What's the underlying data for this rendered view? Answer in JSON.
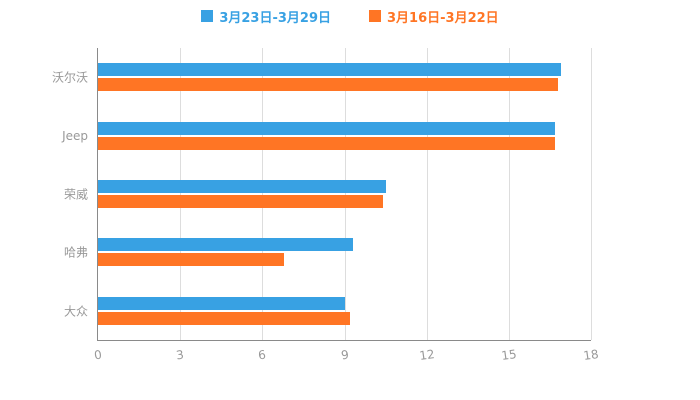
{
  "chart_data": {
    "type": "bar",
    "orientation": "horizontal",
    "title": "",
    "xlabel": "",
    "ylabel": "",
    "categories": [
      "沃尔沃",
      "Jeep",
      "荣威",
      "哈弗",
      "大众"
    ],
    "series": [
      {
        "name": "3月23日-3月29日",
        "color": "#38A1E3",
        "values": [
          16.9,
          16.7,
          10.5,
          9.3,
          9.0
        ]
      },
      {
        "name": "3月16日-3月22日",
        "color": "#FF7524",
        "values": [
          16.8,
          16.7,
          10.4,
          6.8,
          9.2
        ]
      }
    ],
    "xlim": [
      0,
      18
    ],
    "xticks": [
      0,
      3,
      6,
      9,
      12,
      15,
      18
    ],
    "grid": true,
    "legend_position": "top",
    "colors": {
      "axis_line": "#8a8a8a",
      "grid_line": "#dddddd",
      "label_text": "#999999"
    }
  }
}
